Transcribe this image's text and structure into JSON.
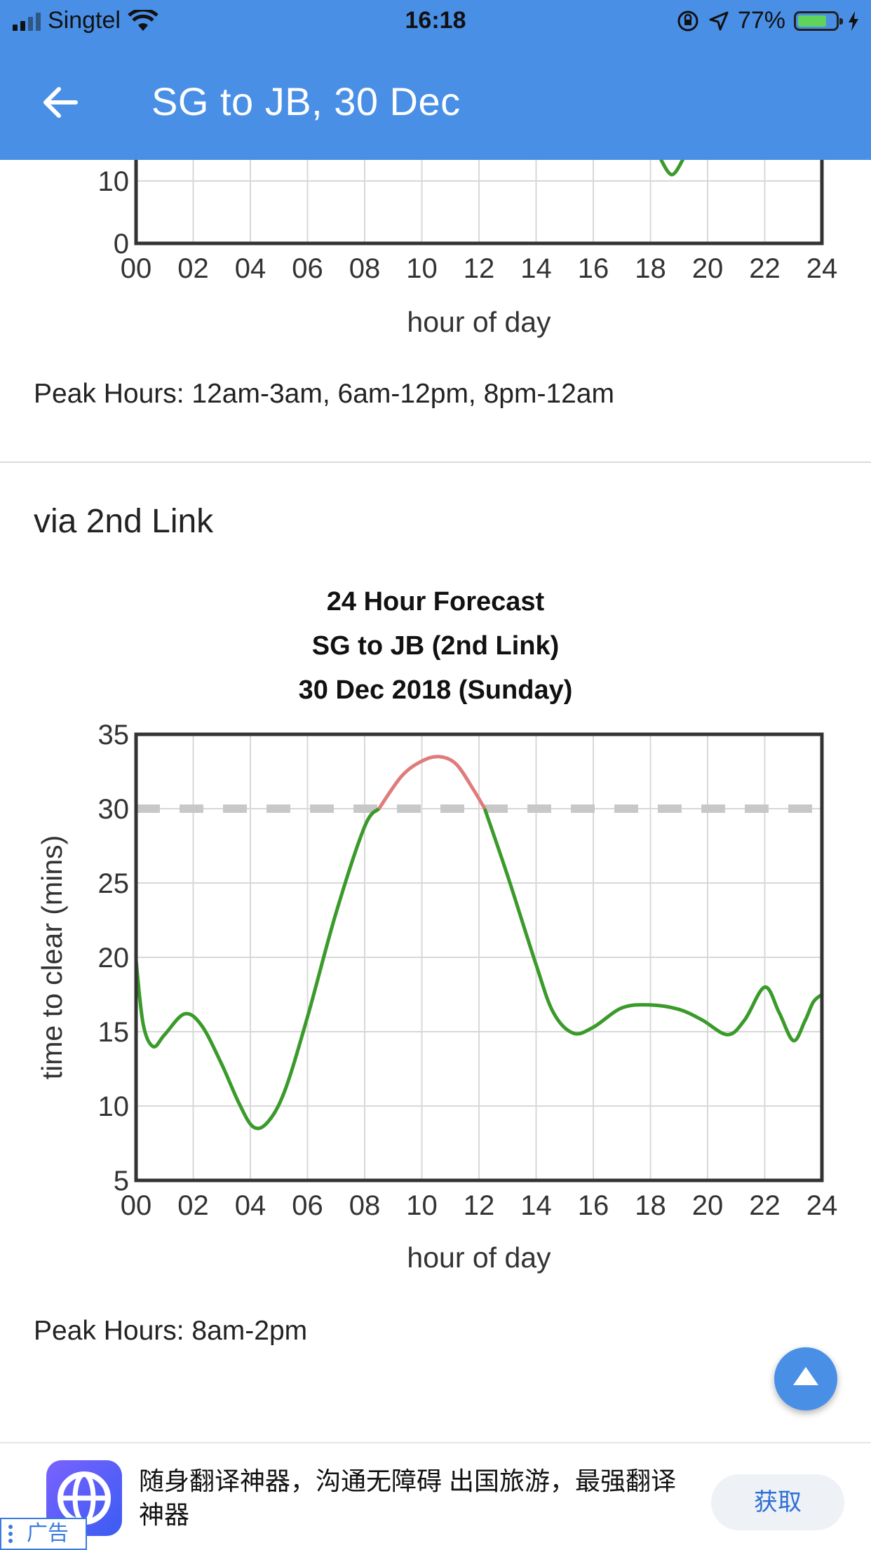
{
  "status_bar": {
    "carrier": "Singtel",
    "time": "16:18",
    "battery_percent": "77%",
    "battery_level": 0.77
  },
  "app_bar": {
    "title": "SG to JB, 30 Dec",
    "back_icon": "arrow-left-icon"
  },
  "section_top": {
    "peak_hours": "Peak Hours: 12am-3am, 6am-12pm, 8pm-12am"
  },
  "section_second_link": {
    "heading": "via 2nd Link",
    "peak_hours": "Peak Hours: 8am-2pm"
  },
  "chart_data": [
    {
      "type": "line",
      "partial": true,
      "xlabel": "hour of day",
      "x_ticks": [
        "00",
        "02",
        "04",
        "06",
        "08",
        "10",
        "12",
        "14",
        "16",
        "18",
        "20",
        "22",
        "24"
      ],
      "y_ticks_visible": [
        "0",
        "10"
      ],
      "visible_series_fragment": [
        [
          18.3,
          14
        ],
        [
          18.75,
          11
        ],
        [
          19.2,
          14
        ]
      ]
    },
    {
      "type": "line",
      "title": [
        "24 Hour Forecast",
        "SG to JB (2nd Link)",
        "30 Dec 2018 (Sunday)"
      ],
      "xlabel": "hour of day",
      "ylabel": "time to clear (mins)",
      "xlim": [
        0,
        24
      ],
      "ylim": [
        5,
        35
      ],
      "x_ticks": [
        "00",
        "02",
        "04",
        "06",
        "08",
        "10",
        "12",
        "14",
        "16",
        "18",
        "20",
        "22",
        "24"
      ],
      "y_ticks": [
        "5",
        "10",
        "15",
        "20",
        "25",
        "30",
        "35"
      ],
      "grid": true,
      "threshold": 30,
      "colors": {
        "normal": "#3a9a2a",
        "peak": "#e07b7b",
        "threshold": "#c8c8c8"
      },
      "x": [
        0,
        0.25,
        0.6,
        1,
        1.7,
        2.3,
        3,
        3.6,
        4.1,
        4.6,
        5.2,
        6,
        7,
        8,
        8.5,
        9.3,
        10,
        10.6,
        11.2,
        11.8,
        12.2,
        13,
        14,
        14.6,
        15.3,
        16,
        17,
        18,
        19,
        19.8,
        20.7,
        21.3,
        22,
        22.5,
        23,
        23.4,
        23.7,
        24
      ],
      "y": [
        19.8,
        15.5,
        14,
        14.8,
        16.2,
        15.4,
        12.8,
        10.2,
        8.6,
        8.9,
        11,
        16,
        23,
        28.8,
        30,
        32.2,
        33.2,
        33.5,
        33,
        31.3,
        30,
        25.5,
        19.5,
        16.3,
        14.9,
        15.3,
        16.6,
        16.8,
        16.5,
        15.8,
        14.8,
        15.8,
        18,
        16.3,
        14.4,
        15.7,
        17,
        17.5
      ]
    }
  ],
  "scroll_top_icon": "arrow-up-icon",
  "ad": {
    "icon": "globe-icon",
    "text": "随身翻译神器，沟通无障碍 出国旅游，最强翻译神器",
    "button": "获取",
    "tag": "广告"
  }
}
